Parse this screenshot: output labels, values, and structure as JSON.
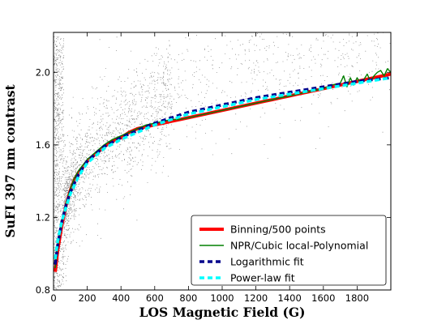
{
  "chart_data": {
    "type": "scatter",
    "xlabel": "LOS Magnetic Field (G)",
    "ylabel": "SuFI 397 nm contrast",
    "xlim": [
      0,
      2000
    ],
    "ylim": [
      0.8,
      2.22
    ],
    "x_ticks": [
      0,
      200,
      400,
      600,
      800,
      1000,
      1200,
      1400,
      1600,
      1800
    ],
    "x_tick_labels": [
      "0",
      "200",
      "400",
      "600",
      "800",
      "1000",
      "1200",
      "1400",
      "1600",
      "1800"
    ],
    "y_ticks": [
      0.8,
      1.2,
      1.6,
      2.0
    ],
    "y_tick_labels": [
      "0.8",
      "1.2",
      "1.6",
      "2.0"
    ],
    "grid": false,
    "legend_position": "bottom-right",
    "scatter_color": "#000000",
    "series": [
      {
        "name": "Binning/500 points",
        "color": "#ff0000",
        "style": "solid-thick",
        "x": [
          10,
          25,
          50,
          75,
          100,
          125,
          150,
          175,
          200,
          250,
          300,
          350,
          400,
          450,
          500,
          550,
          600,
          650,
          700,
          750,
          800,
          850,
          900,
          950,
          1000,
          1050,
          1100,
          1150,
          1200,
          1250,
          1300,
          1350,
          1400,
          1450,
          1500,
          1550,
          1600,
          1650,
          1700,
          1750,
          1800,
          1850,
          1900,
          1950,
          2000
        ],
        "y": [
          0.9,
          1.02,
          1.16,
          1.27,
          1.35,
          1.41,
          1.45,
          1.48,
          1.51,
          1.55,
          1.59,
          1.62,
          1.64,
          1.67,
          1.69,
          1.7,
          1.71,
          1.72,
          1.73,
          1.74,
          1.75,
          1.76,
          1.77,
          1.78,
          1.79,
          1.8,
          1.81,
          1.82,
          1.83,
          1.84,
          1.85,
          1.86,
          1.87,
          1.88,
          1.89,
          1.9,
          1.91,
          1.92,
          1.93,
          1.94,
          1.95,
          1.96,
          1.97,
          1.98,
          1.99
        ]
      },
      {
        "name": "NPR/Cubic local-Polynomial",
        "color": "#008000",
        "style": "solid-thin",
        "x": [
          10,
          25,
          50,
          75,
          100,
          125,
          150,
          175,
          200,
          250,
          300,
          350,
          400,
          450,
          500,
          550,
          600,
          650,
          700,
          750,
          800,
          850,
          900,
          950,
          1000,
          1050,
          1100,
          1150,
          1200,
          1250,
          1300,
          1350,
          1400,
          1450,
          1500,
          1550,
          1600,
          1650,
          1700,
          1720,
          1740,
          1760,
          1780,
          1800,
          1820,
          1840,
          1860,
          1880,
          1900,
          1920,
          1940,
          1960,
          1980,
          2000
        ],
        "y": [
          0.92,
          1.04,
          1.17,
          1.28,
          1.36,
          1.42,
          1.46,
          1.49,
          1.52,
          1.56,
          1.6,
          1.63,
          1.65,
          1.67,
          1.69,
          1.71,
          1.72,
          1.73,
          1.74,
          1.74,
          1.75,
          1.76,
          1.77,
          1.78,
          1.79,
          1.8,
          1.81,
          1.82,
          1.83,
          1.84,
          1.85,
          1.86,
          1.87,
          1.88,
          1.89,
          1.9,
          1.91,
          1.93,
          1.94,
          1.98,
          1.92,
          1.97,
          1.93,
          1.97,
          1.94,
          1.96,
          1.99,
          1.95,
          1.98,
          2.0,
          2.01,
          1.98,
          2.02,
          2.0
        ]
      },
      {
        "name": "Logarithmic fit",
        "color": "#00008b",
        "style": "dashed",
        "x": [
          10,
          25,
          50,
          75,
          100,
          150,
          200,
          250,
          300,
          400,
          500,
          600,
          700,
          800,
          900,
          1000,
          1200,
          1400,
          1600,
          1800,
          2000
        ],
        "y": [
          0.94,
          1.05,
          1.18,
          1.27,
          1.34,
          1.44,
          1.51,
          1.55,
          1.59,
          1.64,
          1.68,
          1.72,
          1.75,
          1.78,
          1.8,
          1.82,
          1.86,
          1.89,
          1.92,
          1.95,
          1.97
        ]
      },
      {
        "name": "Power-law fit",
        "color": "#00ffff",
        "style": "dashed",
        "x": [
          10,
          25,
          50,
          75,
          100,
          150,
          200,
          250,
          300,
          400,
          500,
          600,
          700,
          800,
          900,
          1000,
          1200,
          1400,
          1600,
          1800,
          2000
        ],
        "y": [
          0.97,
          1.07,
          1.18,
          1.26,
          1.33,
          1.43,
          1.5,
          1.54,
          1.58,
          1.63,
          1.67,
          1.71,
          1.74,
          1.77,
          1.79,
          1.81,
          1.85,
          1.88,
          1.91,
          1.94,
          1.97
        ]
      }
    ]
  }
}
